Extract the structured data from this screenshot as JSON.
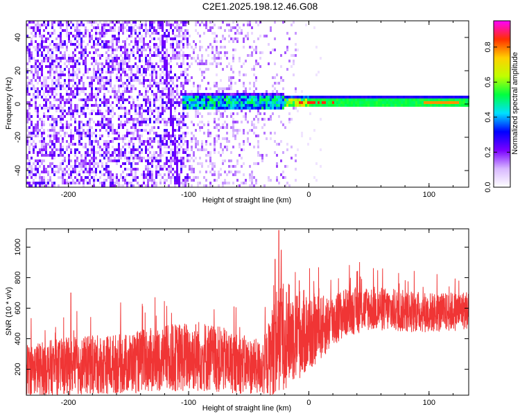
{
  "title": "C2E1.2025.198.12.46.G08",
  "chart_data": [
    {
      "type": "heatmap",
      "xlabel": "Height of straight line (km)",
      "ylabel": "Frequency (Hz)",
      "xlim": [
        -235,
        133
      ],
      "ylim": [
        -50,
        50
      ],
      "x_ticks": [
        -200,
        -100,
        0,
        100
      ],
      "y_ticks": [
        -40,
        -20,
        0,
        20,
        40
      ],
      "colorbar": {
        "label": "Normalized spectral amplitude",
        "range": [
          0,
          0.95
        ],
        "ticks": [
          0.0,
          0.2,
          0.4,
          0.6,
          0.8
        ],
        "colormap": [
          "#ffffff",
          "#d8b8ff",
          "#7a00ff",
          "#0000ff",
          "#00e0ff",
          "#00ff40",
          "#c0ff00",
          "#ffd000",
          "#ff3000",
          "#ff00ff"
        ]
      },
      "features": {
        "noise_region_x": [
          -235,
          -10
        ],
        "tone_center_hz": 1,
        "tone_start_x": -105,
        "drift_line": {
          "x_at_top": -123,
          "x_at_bottom": -108
        }
      }
    },
    {
      "type": "line",
      "xlabel": "Height of straight line (km)",
      "ylabel": "SNR (10 * v/v)",
      "xlim": [
        -235,
        133
      ],
      "ylim": [
        30,
        1120
      ],
      "x_ticks": [
        -200,
        -100,
        0,
        100
      ],
      "y_ticks": [
        200,
        400,
        600,
        800,
        1000
      ],
      "color": "#f03535",
      "envelope": [
        {
          "x": -235,
          "mean": 200,
          "spread": 170
        },
        {
          "x": -200,
          "mean": 220,
          "spread": 190
        },
        {
          "x": -150,
          "mean": 240,
          "spread": 200
        },
        {
          "x": -120,
          "mean": 270,
          "spread": 220
        },
        {
          "x": -90,
          "mean": 290,
          "spread": 240
        },
        {
          "x": -60,
          "mean": 240,
          "spread": 200
        },
        {
          "x": -40,
          "mean": 210,
          "spread": 180
        },
        {
          "x": -35,
          "mean": 240,
          "spread": 220
        },
        {
          "x": -25,
          "mean": 420,
          "spread": 380
        },
        {
          "x": -15,
          "mean": 430,
          "spread": 330
        },
        {
          "x": 0,
          "mean": 440,
          "spread": 270
        },
        {
          "x": 10,
          "mean": 470,
          "spread": 210
        },
        {
          "x": 30,
          "mean": 570,
          "spread": 160
        },
        {
          "x": 50,
          "mean": 600,
          "spread": 150
        },
        {
          "x": 80,
          "mean": 580,
          "spread": 140
        },
        {
          "x": 110,
          "mean": 570,
          "spread": 130
        },
        {
          "x": 133,
          "mean": 590,
          "spread": 130
        }
      ],
      "peaks": [
        {
          "x": -25,
          "y": 1110
        },
        {
          "x": -23,
          "y": 980
        },
        {
          "x": -28,
          "y": 920
        },
        {
          "x": -8,
          "y": 780
        },
        {
          "x": 40,
          "y": 840
        },
        {
          "x": -198,
          "y": 700
        }
      ]
    }
  ]
}
